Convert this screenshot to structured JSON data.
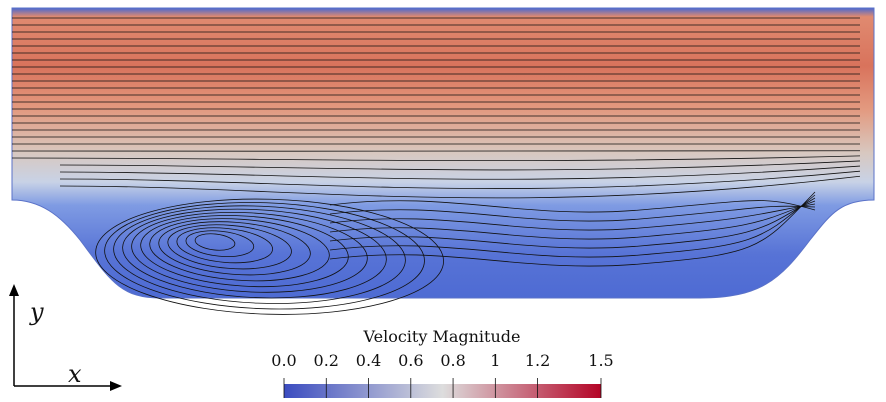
{
  "colorbar": {
    "title": "Velocity Magnitude",
    "lim": [
      0,
      1.5
    ],
    "ticks": [
      {
        "value": 0,
        "label": "0.0"
      },
      0.2,
      0.4,
      0.6,
      0.8,
      1,
      1.2,
      1.5
    ],
    "colors": [
      "#3b4cc0",
      "#dddddd",
      "#b40426"
    ]
  },
  "axes": {
    "x": "x",
    "y": "y"
  }
}
